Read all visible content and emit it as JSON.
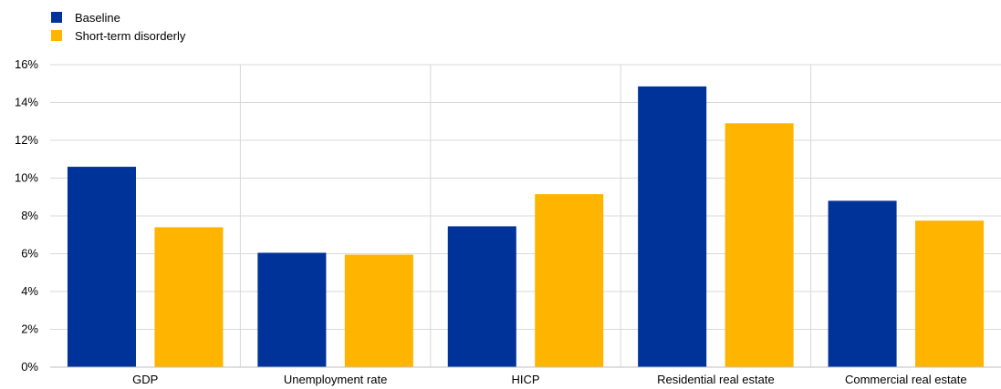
{
  "chart_data": {
    "type": "bar",
    "categories": [
      "GDP",
      "Unemployment rate",
      "HICP",
      "Residential real estate",
      "Commercial real estate"
    ],
    "series": [
      {
        "name": "Baseline",
        "color": "#003399",
        "values": [
          10.6,
          6.05,
          7.45,
          14.85,
          8.8
        ]
      },
      {
        "name": "Short-term disorderly",
        "color": "#FFB400",
        "values": [
          7.4,
          5.95,
          9.15,
          12.9,
          7.75
        ]
      }
    ],
    "ylim": [
      0,
      16
    ],
    "yticks": [
      0,
      2,
      4,
      6,
      8,
      10,
      12,
      14,
      16
    ],
    "ytick_suffix": "%",
    "grid": true,
    "legend": "top-left"
  }
}
